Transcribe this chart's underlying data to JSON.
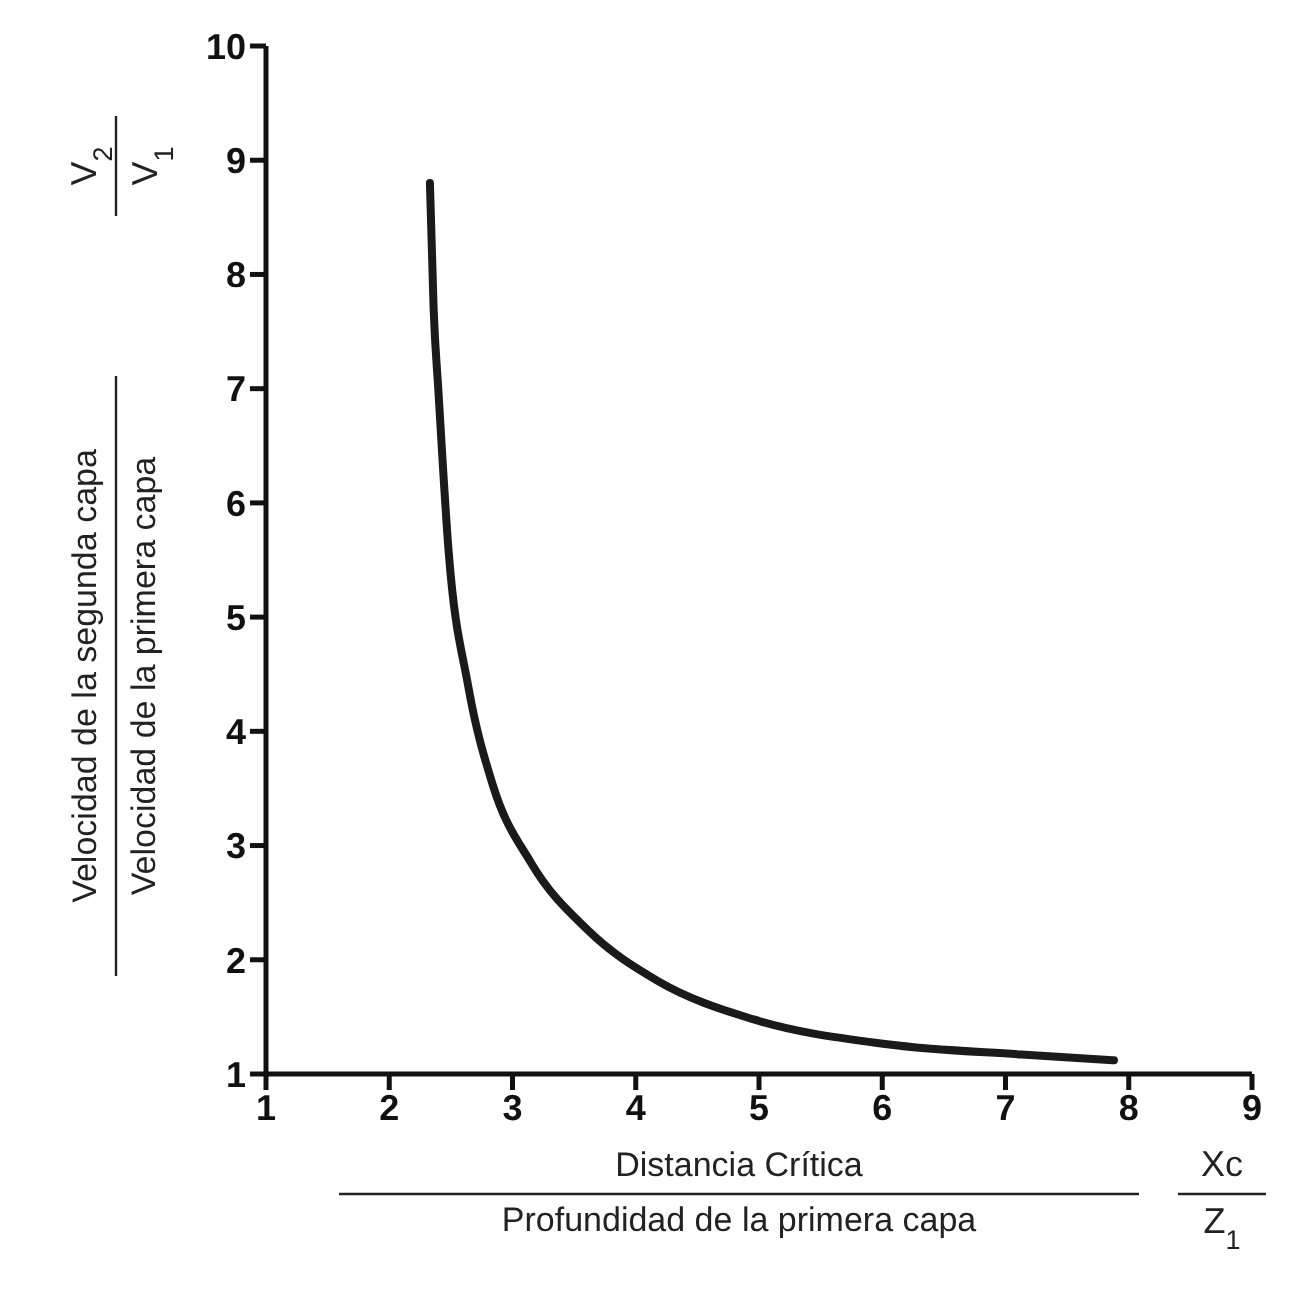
{
  "chart_data": {
    "type": "line",
    "xlabel": "Distancia Crítica\nProfundidad de la primera capa",
    "ylabel": "Velocidad de la segunda capa\nVelocidad de la primera capa",
    "annotations": [
      "V$_{2}$\nV$_{1}$",
      "Xc\nZ$_{1}$"
    ],
    "x": [
      2.33,
      2.36,
      2.4,
      2.48,
      2.64,
      2.84,
      3.15,
      3.62,
      4.17,
      4.95,
      6.04,
      7.13,
      7.88
    ],
    "series": [
      {
        "color": "#1a1a1a",
        "values": [
          8.8,
          7.7,
          6.96,
          5.6,
          4.4,
          3.53,
          2.85,
          2.25,
          1.82,
          1.48,
          1.26,
          1.17,
          1.12
        ]
      }
    ],
    "xlim": [
      1,
      9
    ],
    "xticks": [
      1,
      2,
      3,
      4,
      5,
      6,
      7,
      8,
      9
    ],
    "ylim": [
      1,
      10
    ],
    "yticks": [
      1,
      2,
      3,
      4,
      5,
      6,
      7,
      8,
      9,
      10
    ],
    "grid": false,
    "legend": false,
    "marker": "none",
    "line_style": "solid"
  }
}
